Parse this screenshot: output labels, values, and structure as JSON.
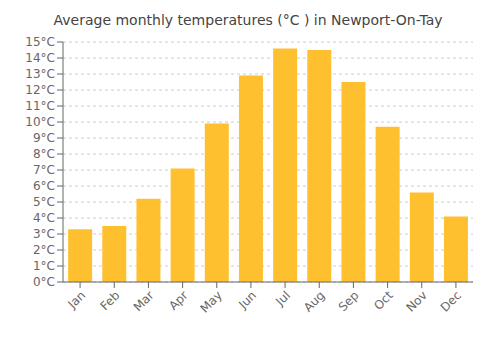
{
  "chart_data": {
    "type": "bar",
    "title": "Average monthly temperatures (°C ) in Newport-On-Tay",
    "categories": [
      "Jan",
      "Feb",
      "Mar",
      "Apr",
      "May",
      "Jun",
      "Jul",
      "Aug",
      "Sep",
      "Oct",
      "Nov",
      "Dec"
    ],
    "values": [
      3.3,
      3.5,
      5.2,
      7.1,
      9.9,
      12.9,
      14.6,
      14.5,
      12.5,
      9.7,
      5.6,
      4.1
    ],
    "color": "#FFC030",
    "ylim": [
      0,
      15
    ],
    "yticks": [
      {
        "value": 0,
        "label": "0°C"
      },
      {
        "value": 1,
        "label": "1°C"
      },
      {
        "value": 2,
        "label": "2°C"
      },
      {
        "value": 3,
        "label": "3°C"
      },
      {
        "value": 4,
        "label": "4°C"
      },
      {
        "value": 5,
        "label": "5°C"
      },
      {
        "value": 6,
        "label": "6°C"
      },
      {
        "value": 7,
        "label": "7°C"
      },
      {
        "value": 8,
        "label": "8°C"
      },
      {
        "value": 9,
        "label": "9°C"
      },
      {
        "value": 10,
        "label": "10°C"
      },
      {
        "value": 11,
        "label": "11°C"
      },
      {
        "value": 12,
        "label": "12°C"
      },
      {
        "value": 13,
        "label": "13°C"
      },
      {
        "value": 14,
        "label": "14°C"
      },
      {
        "value": 15,
        "label": "15°C"
      }
    ],
    "grid": true
  }
}
